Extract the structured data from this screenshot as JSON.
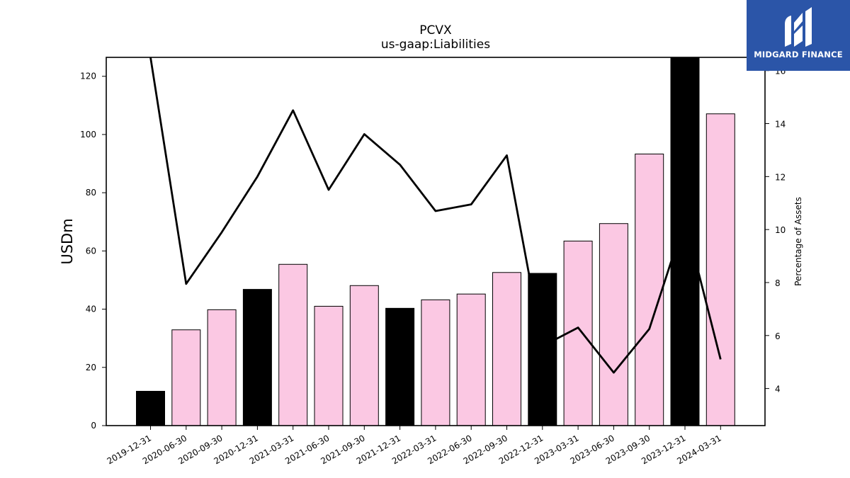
{
  "chart_data": {
    "type": "bar",
    "title": "PCVX",
    "subtitle": "us-gaap:Liabilities",
    "ylabel": "USDm",
    "y2label": "Percentage of Assets",
    "ylim": [
      0,
      126.5
    ],
    "y2lim": [
      2.6,
      16.5
    ],
    "yticks": [
      0,
      20,
      40,
      60,
      80,
      100,
      120
    ],
    "y2ticks": [
      4,
      6,
      8,
      10,
      12,
      14,
      16
    ],
    "categories": [
      "2019-12-31",
      "2020-06-30",
      "2020-09-30",
      "2020-12-31",
      "2021-03-31",
      "2021-06-30",
      "2021-09-30",
      "2021-12-31",
      "2022-03-31",
      "2022-06-30",
      "2022-09-30",
      "2022-12-31",
      "2023-03-31",
      "2023-06-30",
      "2023-09-30",
      "2023-12-31",
      "2024-03-31"
    ],
    "series": [
      {
        "type": "bar",
        "values": [
          11.8,
          32.9,
          39.8,
          46.8,
          55.4,
          41.0,
          48.1,
          40.3,
          43.2,
          45.2,
          52.6,
          52.3,
          63.4,
          69.4,
          93.3,
          126.5,
          107.1
        ],
        "colors": [
          "#000000",
          "#fbc8e3",
          "#fbc8e3",
          "#000000",
          "#fbc8e3",
          "#fbc8e3",
          "#fbc8e3",
          "#000000",
          "#fbc8e3",
          "#fbc8e3",
          "#fbc8e3",
          "#000000",
          "#fbc8e3",
          "#fbc8e3",
          "#fbc8e3",
          "#000000",
          "#fbc8e3"
        ]
      },
      {
        "type": "line",
        "axis": "right",
        "values": [
          16.5,
          7.95,
          9.9,
          12.0,
          14.5,
          11.5,
          13.6,
          12.45,
          10.7,
          10.95,
          12.8,
          5.6,
          6.3,
          4.6,
          6.25,
          10.4,
          5.1
        ]
      }
    ],
    "grid": false,
    "colors": {
      "highlight": "#000000",
      "bar": "#fbc8e3",
      "line": "#000000"
    }
  },
  "logo": {
    "text": "MIDGARD FINANCE",
    "background": "#2b55a8"
  }
}
